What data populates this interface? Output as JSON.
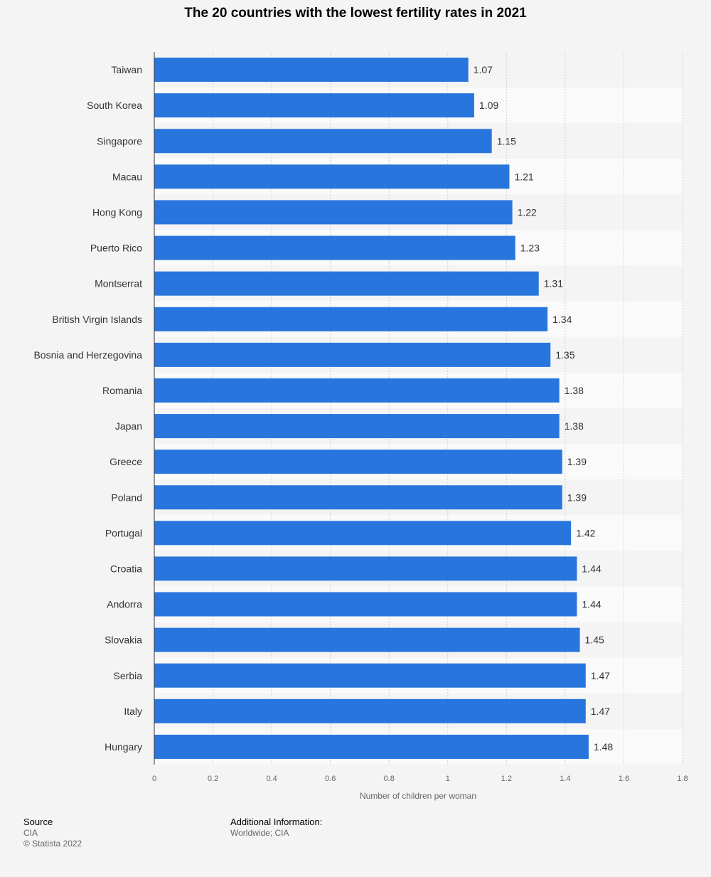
{
  "chart_data": {
    "type": "bar",
    "orientation": "horizontal",
    "title": "The 20 countries with the lowest fertility rates in 2021",
    "xlabel": "Number of children per woman",
    "xlim": [
      0,
      1.8
    ],
    "xticks": [
      "0",
      "0.2",
      "0.4",
      "0.6",
      "0.8",
      "1",
      "1.2",
      "1.4",
      "1.6",
      "1.8"
    ],
    "grid": true,
    "categories": [
      "Taiwan",
      "South Korea",
      "Singapore",
      "Macau",
      "Hong Kong",
      "Puerto Rico",
      "Montserrat",
      "British Virgin Islands",
      "Bosnia and Herzegovina",
      "Romania",
      "Japan",
      "Greece",
      "Poland",
      "Portugal",
      "Croatia",
      "Andorra",
      "Slovakia",
      "Serbia",
      "Italy",
      "Hungary"
    ],
    "values": [
      1.07,
      1.09,
      1.15,
      1.21,
      1.22,
      1.23,
      1.31,
      1.34,
      1.35,
      1.38,
      1.38,
      1.39,
      1.39,
      1.42,
      1.44,
      1.44,
      1.45,
      1.47,
      1.47,
      1.48
    ],
    "value_labels": [
      "1.07",
      "1.09",
      "1.15",
      "1.21",
      "1.22",
      "1.23",
      "1.31",
      "1.34",
      "1.35",
      "1.38",
      "1.38",
      "1.39",
      "1.39",
      "1.42",
      "1.44",
      "1.44",
      "1.45",
      "1.47",
      "1.47",
      "1.48"
    ],
    "bar_color": "#2876dd"
  },
  "footer": {
    "source_heading": "Source",
    "source_name": "CIA",
    "copyright": "© Statista 2022",
    "additional_heading": "Additional Information:",
    "additional_text": "Worldwide; CIA"
  }
}
